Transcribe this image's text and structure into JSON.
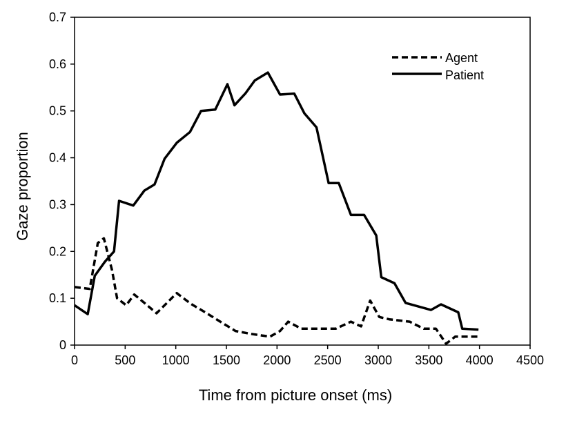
{
  "chart_data": {
    "type": "line",
    "title": "",
    "xlabel": "Time from picture onset (ms)",
    "ylabel": "Gaze proportion",
    "xlim": [
      0,
      4500
    ],
    "ylim": [
      0,
      0.7
    ],
    "xticks": [
      0,
      500,
      1000,
      1500,
      2000,
      2500,
      3000,
      3500,
      4000,
      4500
    ],
    "yticks": [
      0,
      0.1,
      0.2,
      0.3,
      0.4,
      0.5,
      0.6,
      0.7
    ],
    "xtick_labels": [
      "0",
      "500",
      "1000",
      "1500",
      "2000",
      "2500",
      "3000",
      "3500",
      "4000",
      "4500"
    ],
    "ytick_labels": [
      "0",
      "0.1",
      "0.2",
      "0.3",
      "0.4",
      "0.5",
      "0.6",
      "0.7"
    ],
    "grid": false,
    "legend_position": "top-right",
    "series": [
      {
        "name": "Agent",
        "style": "dashed",
        "color": "#000000",
        "points": [
          [
            0,
            0.124
          ],
          [
            150,
            0.12
          ],
          [
            230,
            0.218
          ],
          [
            290,
            0.228
          ],
          [
            370,
            0.16
          ],
          [
            420,
            0.1
          ],
          [
            510,
            0.085
          ],
          [
            590,
            0.108
          ],
          [
            690,
            0.09
          ],
          [
            810,
            0.068
          ],
          [
            1010,
            0.111
          ],
          [
            1150,
            0.088
          ],
          [
            1290,
            0.07
          ],
          [
            1440,
            0.05
          ],
          [
            1590,
            0.03
          ],
          [
            1740,
            0.024
          ],
          [
            1930,
            0.018
          ],
          [
            2030,
            0.03
          ],
          [
            2110,
            0.05
          ],
          [
            2240,
            0.035
          ],
          [
            2580,
            0.035
          ],
          [
            2730,
            0.05
          ],
          [
            2830,
            0.04
          ],
          [
            2920,
            0.095
          ],
          [
            3010,
            0.06
          ],
          [
            3110,
            0.055
          ],
          [
            3310,
            0.05
          ],
          [
            3450,
            0.035
          ],
          [
            3570,
            0.035
          ],
          [
            3670,
            0.003
          ],
          [
            3760,
            0.018
          ],
          [
            4000,
            0.018
          ]
        ]
      },
      {
        "name": "Patient",
        "style": "solid",
        "color": "#000000",
        "points": [
          [
            0,
            0.085
          ],
          [
            130,
            0.066
          ],
          [
            200,
            0.148
          ],
          [
            300,
            0.178
          ],
          [
            390,
            0.2
          ],
          [
            440,
            0.308
          ],
          [
            580,
            0.298
          ],
          [
            690,
            0.33
          ],
          [
            790,
            0.343
          ],
          [
            890,
            0.398
          ],
          [
            1010,
            0.432
          ],
          [
            1140,
            0.455
          ],
          [
            1250,
            0.5
          ],
          [
            1390,
            0.503
          ],
          [
            1510,
            0.557
          ],
          [
            1580,
            0.512
          ],
          [
            1690,
            0.538
          ],
          [
            1780,
            0.565
          ],
          [
            1910,
            0.582
          ],
          [
            2030,
            0.535
          ],
          [
            2170,
            0.537
          ],
          [
            2270,
            0.495
          ],
          [
            2390,
            0.465
          ],
          [
            2510,
            0.346
          ],
          [
            2610,
            0.346
          ],
          [
            2730,
            0.278
          ],
          [
            2860,
            0.278
          ],
          [
            2980,
            0.234
          ],
          [
            3030,
            0.145
          ],
          [
            3160,
            0.132
          ],
          [
            3270,
            0.09
          ],
          [
            3520,
            0.075
          ],
          [
            3620,
            0.087
          ],
          [
            3790,
            0.07
          ],
          [
            3830,
            0.035
          ],
          [
            3990,
            0.033
          ]
        ]
      }
    ]
  }
}
